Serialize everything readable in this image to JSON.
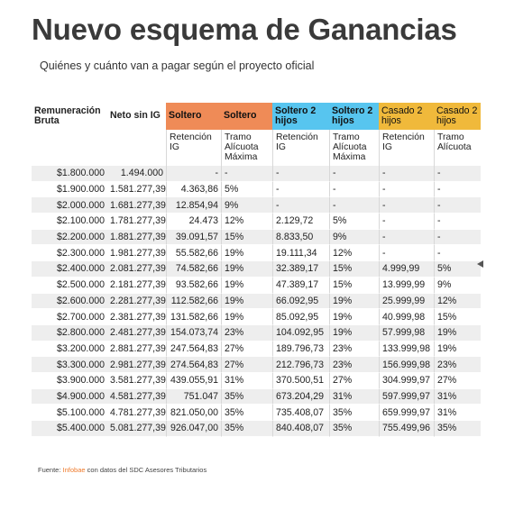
{
  "title": "Nuevo esquema de Ganancias",
  "subtitle": "Quiénes y cuánto van a pagar según el proyecto oficial",
  "headers": [
    "Remuneración Bruta",
    "Neto sin IG",
    "Soltero",
    "Soltero",
    "Soltero 2 hijos",
    "Soltero 2 hijos",
    "Casado 2 hijos",
    "Casado 2 hijos"
  ],
  "subheaders": [
    "",
    "",
    "Retención IG",
    "Tramo Alícuota Máxima",
    "Retención IG",
    "Tramo Alícuota Máxima",
    "Retención IG",
    "Tramo Alícuota"
  ],
  "colors": {
    "soltero": "#ef8b57",
    "soltero_2_hijos": "#57c5ef",
    "casado_2_hijos": "#f0b93b",
    "footer_brand": "#ef7a2b"
  },
  "rows": [
    [
      "$1.800.000",
      "1.494.000",
      "-",
      "-",
      "-",
      "-",
      "-",
      "-"
    ],
    [
      "$1.900.000",
      "1.581.277,39",
      "4.363,86",
      "5%",
      "-",
      "-",
      "-",
      "-"
    ],
    [
      "$2.000.000",
      "1.681.277,39",
      "12.854,94",
      "9%",
      "-",
      "-",
      "-",
      "-"
    ],
    [
      "$2.100.000",
      "1.781.277,39",
      "24.473",
      "12%",
      "2.129,72",
      "5%",
      "-",
      "-"
    ],
    [
      "$2.200.000",
      "1.881.277,39",
      "39.091,57",
      "15%",
      "8.833,50",
      "9%",
      "-",
      "-"
    ],
    [
      "$2.300.000",
      "1.981.277,39",
      "55.582,66",
      "19%",
      "19.111,34",
      "12%",
      "-",
      "-"
    ],
    [
      "$2.400.000",
      "2.081.277,39",
      "74.582,66",
      "19%",
      "32.389,17",
      "15%",
      "4.999,99",
      "5%"
    ],
    [
      "$2.500.000",
      "2.181.277,39",
      "93.582,66",
      "19%",
      "47.389,17",
      "15%",
      "13.999,99",
      "9%"
    ],
    [
      "$2.600.000",
      "2.281.277,39",
      "112.582,66",
      "19%",
      "66.092,95",
      "19%",
      "25.999,99",
      "12%"
    ],
    [
      "$2.700.000",
      "2.381.277,39",
      "131.582,66",
      "19%",
      "85.092,95",
      "19%",
      "40.999,98",
      "15%"
    ],
    [
      "$2.800.000",
      "2.481.277,39",
      "154.073,74",
      "23%",
      "104.092,95",
      "19%",
      "57.999,98",
      "19%"
    ],
    [
      "$3.200.000",
      "2.881.277,39",
      "247.564,83",
      "27%",
      "189.796,73",
      "23%",
      "133.999,98",
      "19%"
    ],
    [
      "$3.300.000",
      "2.981.277,39",
      "274.564,83",
      "27%",
      "212.796,73",
      "23%",
      "156.999,98",
      "23%"
    ],
    [
      "$3.900.000",
      "3.581.277,39",
      "439.055,91",
      "31%",
      "370.500,51",
      "27%",
      "304.999,97",
      "27%"
    ],
    [
      "$4.900.000",
      "4.581.277,39",
      "751.047",
      "35%",
      "673.204,29",
      "31%",
      "597.999,97",
      "31%"
    ],
    [
      "$5.100.000",
      "4.781.277,39",
      "821.050,00",
      "35%",
      "735.408,07",
      "35%",
      "659.999,97",
      "31%"
    ],
    [
      "$5.400.000",
      "5.081.277,39",
      "926.047,00",
      "35%",
      "840.408,07",
      "35%",
      "755.499,96",
      "35%"
    ]
  ],
  "footer": {
    "prefix": "Fuente: ",
    "brand": "Infobae",
    "suffix": " con datos del SDC Asesores Tributarios"
  }
}
